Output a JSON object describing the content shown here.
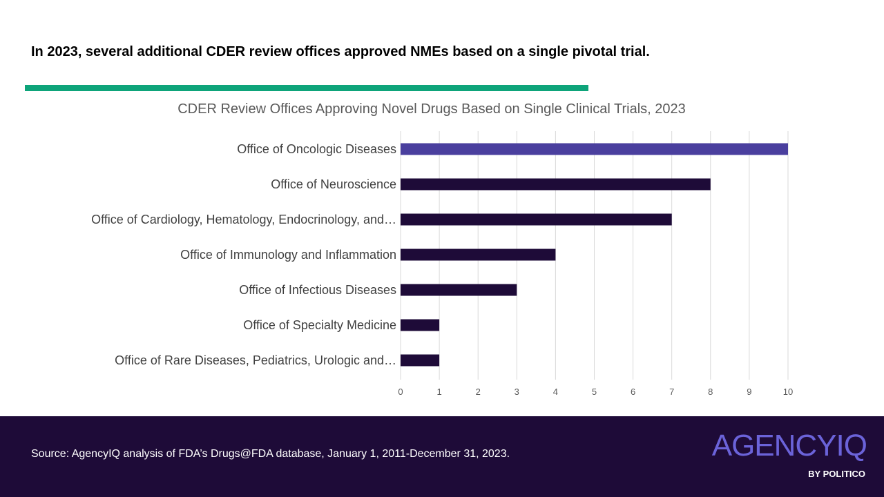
{
  "headline": "In 2023, several additional CDER review offices approved NMEs based on a single pivotal trial.",
  "colors": {
    "accent_bar": "#0ea47a",
    "highlight_bar": "#4a3f9e",
    "bar": "#1e0b38",
    "footer_bg": "#1e0b38",
    "logo": "#6b63d9",
    "gridline": "#d9d9d9",
    "tick_text": "#595959",
    "category_text": "#404040"
  },
  "chart_data": {
    "type": "bar",
    "orientation": "horizontal",
    "title": "CDER Review Offices Approving Novel Drugs Based on Single Clinical Trials, 2023",
    "categories": [
      "Office of Oncologic Diseases",
      "Office of Neuroscience",
      "Office of Cardiology, Hematology, Endocrinology, and…",
      "Office of Immunology and Inflammation",
      "Office of Infectious Diseases",
      "Office of Specialty Medicine",
      "Office of Rare Diseases, Pediatrics, Urologic and…"
    ],
    "values": [
      10,
      8,
      7,
      4,
      3,
      1,
      1
    ],
    "highlight_index": 0,
    "xlim": [
      0,
      10
    ],
    "xticks": [
      "0",
      "1",
      "2",
      "3",
      "4",
      "5",
      "6",
      "7",
      "8",
      "9",
      "10"
    ],
    "grid": true,
    "legend": "none",
    "xlabel": "",
    "ylabel": ""
  },
  "footer": {
    "source": "Source: AgencyIQ analysis of FDA’s Drugs@FDA database, January 1, 2011-December 31, 2023.",
    "logo_main": "AGENCYIQ",
    "logo_sub": "BY POLITICO"
  }
}
